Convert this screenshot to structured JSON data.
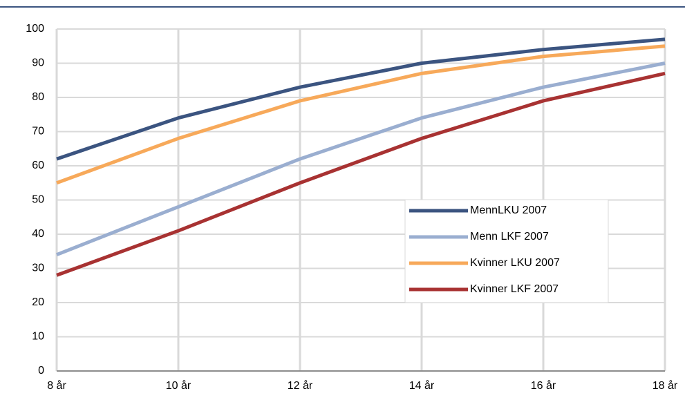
{
  "chart_data": {
    "type": "line",
    "categories": [
      "8 år",
      "10 år",
      "12 år",
      "14 år",
      "16 år",
      "18 år"
    ],
    "series": [
      {
        "name": "MennLKU 2007",
        "color": "#3b5480",
        "values": [
          62,
          74,
          83,
          90,
          94,
          97
        ]
      },
      {
        "name": "Menn LKF 2007",
        "color": "#9aaed0",
        "values": [
          34,
          48,
          62,
          74,
          83,
          90
        ]
      },
      {
        "name": "Kvinner LKU 2007",
        "color": "#f7a95a",
        "values": [
          55,
          68,
          79,
          87,
          92,
          95
        ]
      },
      {
        "name": "Kvinner LKF 2007",
        "color": "#a83232",
        "values": [
          28,
          41,
          55,
          68,
          79,
          87
        ]
      }
    ],
    "ylim": [
      0,
      100
    ],
    "yticks": [
      0,
      10,
      20,
      30,
      40,
      50,
      60,
      70,
      80,
      90,
      100
    ],
    "grid": true,
    "legend": "center-right"
  }
}
